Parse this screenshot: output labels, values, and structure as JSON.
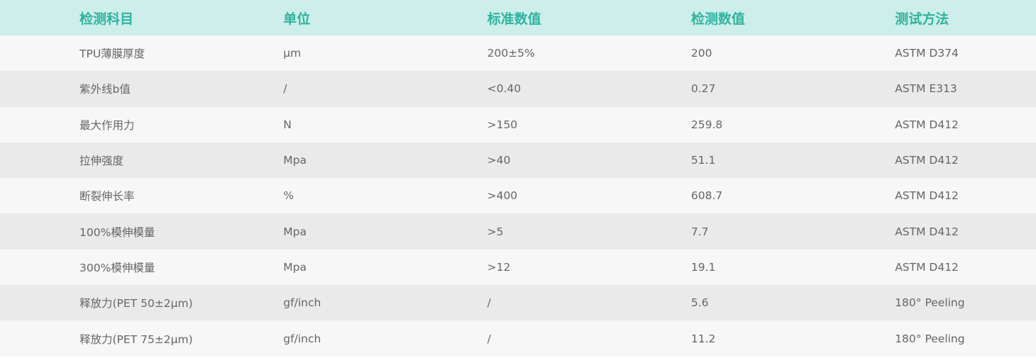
{
  "colors": {
    "header_bg": "#cdeeea",
    "header_text": "#2db4a0",
    "row_light": "#f7f7f7",
    "row_dark": "#eaeaea",
    "text": "#666666"
  },
  "headers": [
    "检测科目",
    "单位",
    "标准数值",
    "检测数值",
    "测试方法"
  ],
  "rows": [
    [
      "TPU薄膜厚度",
      "µm",
      "200±5%",
      "200",
      "ASTM D374"
    ],
    [
      "紫外线b值",
      "/",
      "<0.40",
      "0.27",
      "ASTM E313"
    ],
    [
      "最大作用力",
      "N",
      ">150",
      "259.8",
      "ASTM D412"
    ],
    [
      "拉伸强度",
      "Mpa",
      ">40",
      "51.1",
      "ASTM D412"
    ],
    [
      "断裂伸长率",
      "%",
      ">400",
      "608.7",
      "ASTM D412"
    ],
    [
      "100%模伸模量",
      "Mpa",
      ">5",
      "7.7",
      "ASTM D412"
    ],
    [
      "300%模伸模量",
      "Mpa",
      ">12",
      "19.1",
      "ASTM D412"
    ],
    [
      "释放力(PET 50±2µm)",
      "gf/inch",
      "/",
      "5.6",
      "180° Peeling"
    ],
    [
      "释放力(PET 75±2µm)",
      "gf/inch",
      "/",
      "11.2",
      "180° Peeling"
    ]
  ]
}
